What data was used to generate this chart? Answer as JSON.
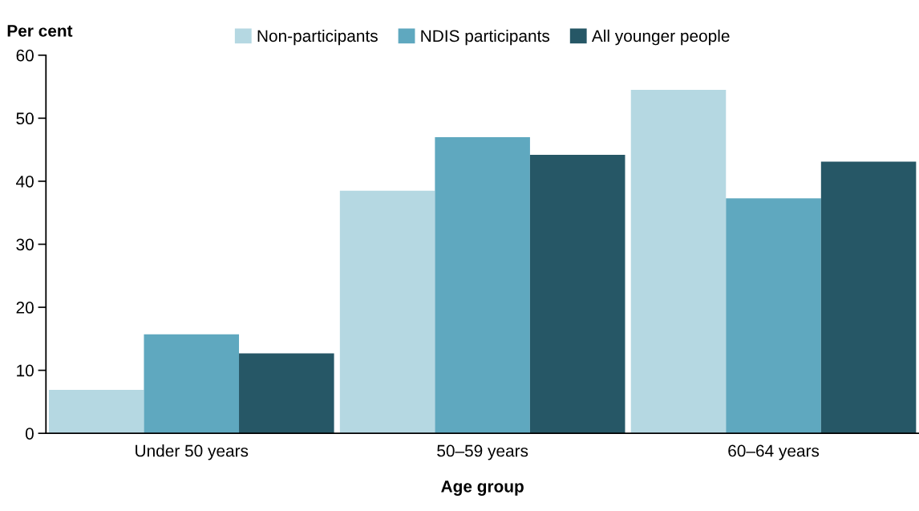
{
  "chart_data": {
    "type": "bar",
    "ylabel": "Per cent",
    "xlabel": "Age group",
    "categories": [
      "Under 50 years",
      "50–59 years",
      "60–64 years"
    ],
    "series": [
      {
        "name": "Non-participants",
        "color": "#b5d8e2",
        "values": [
          6.9,
          38.5,
          54.5
        ]
      },
      {
        "name": "NDIS participants",
        "color": "#5fa8bf",
        "values": [
          15.7,
          47.0,
          37.3
        ]
      },
      {
        "name": "All younger people",
        "color": "#265766",
        "values": [
          12.7,
          44.2,
          43.1
        ]
      }
    ],
    "ylim": [
      0,
      60
    ],
    "yticks": [
      0,
      10,
      20,
      30,
      40,
      50,
      60
    ],
    "grid": false,
    "legend": "top"
  }
}
